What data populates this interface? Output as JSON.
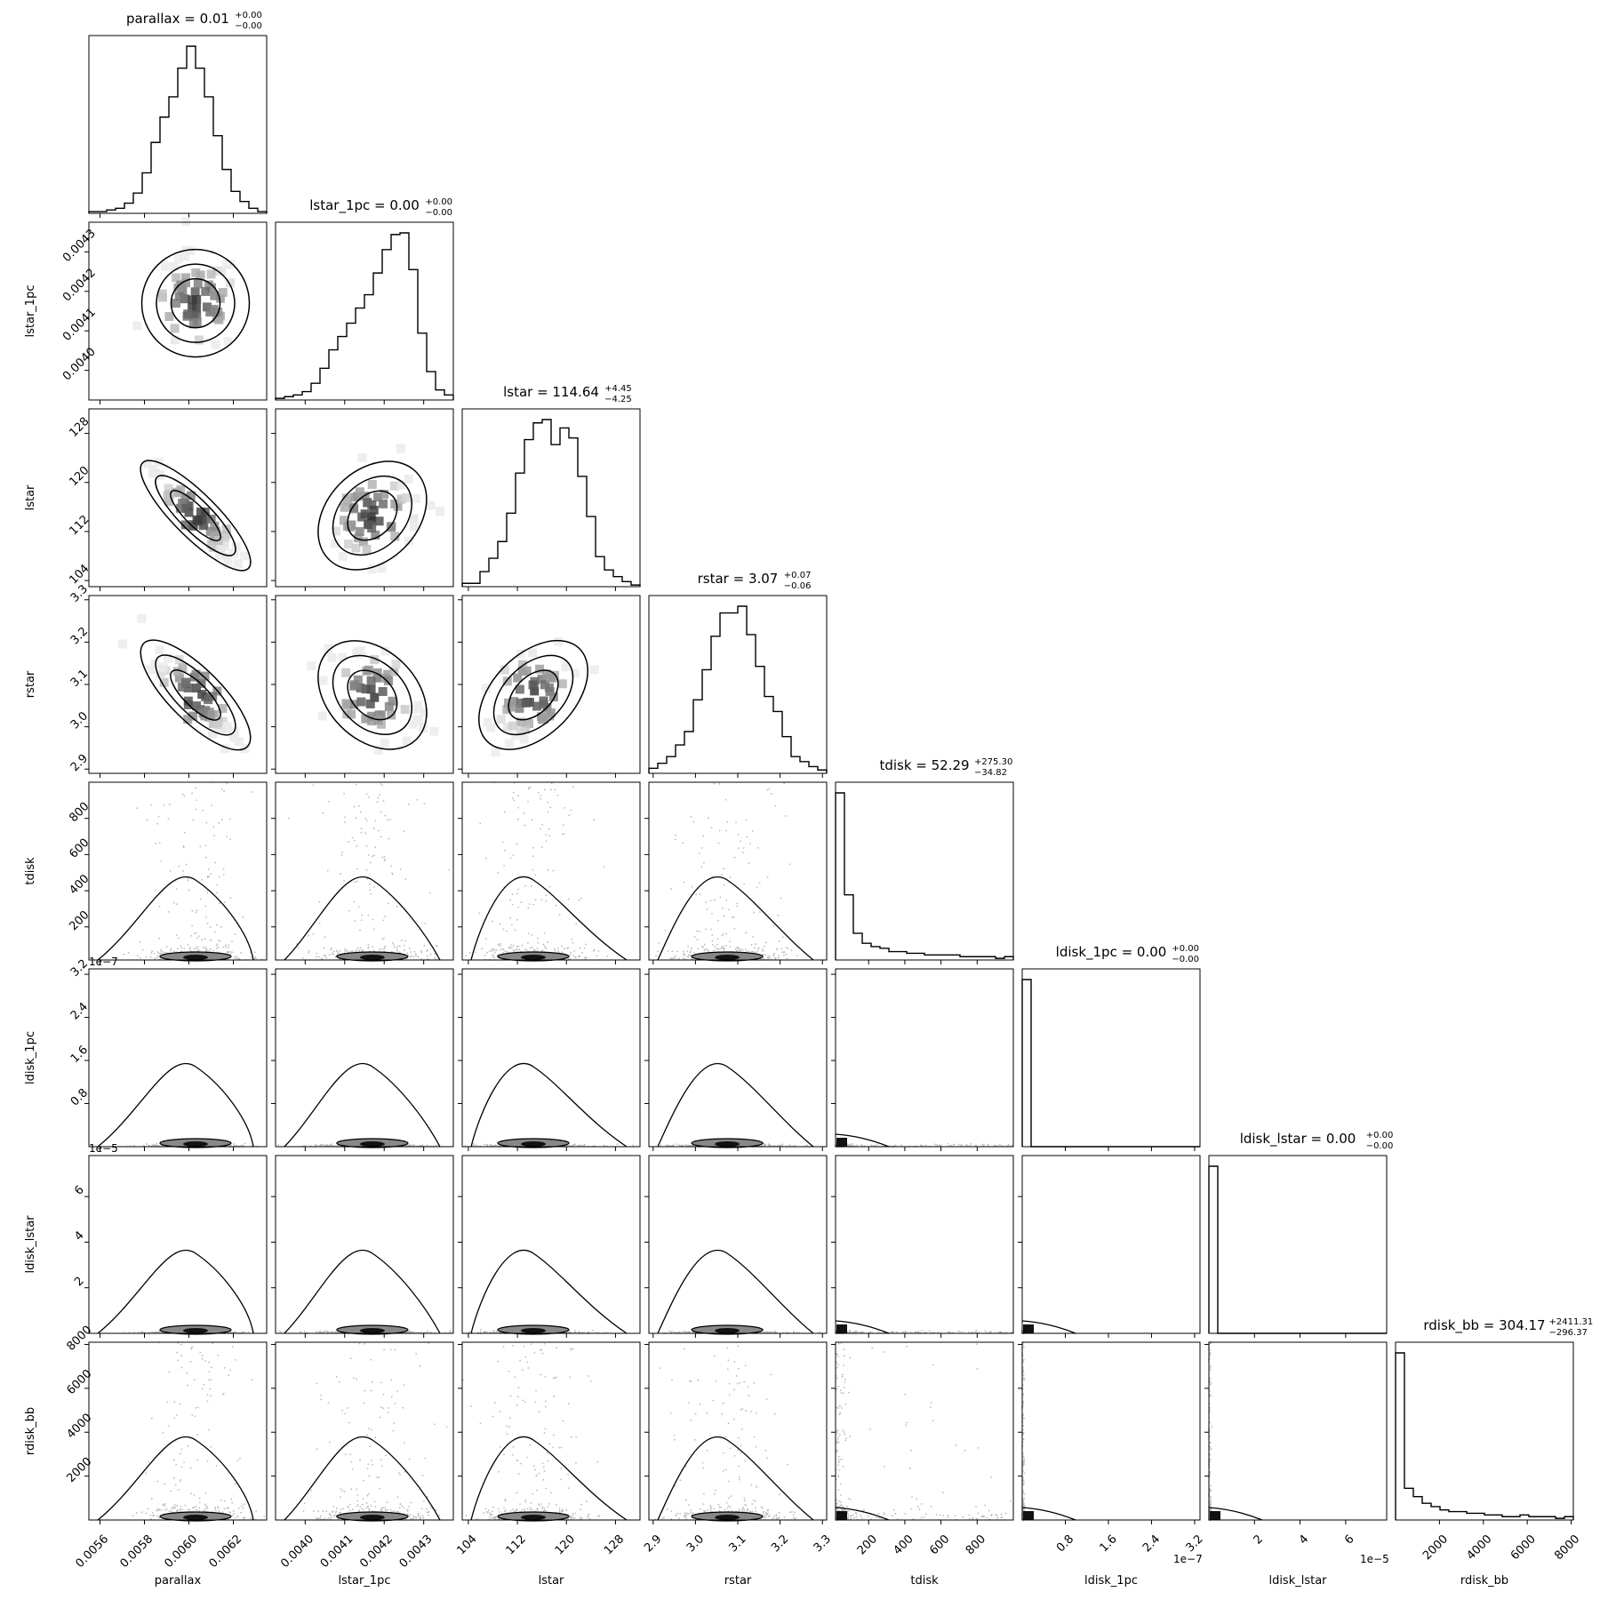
{
  "chart_data": {
    "type": "corner",
    "parameters": [
      {
        "name": "parallax",
        "title": "parallax = 0.01",
        "median": "0.01",
        "plus": "+0.00",
        "minus": "−0.00",
        "range": [
          0.00555,
          0.00635
        ],
        "ticks": [
          0.0056,
          0.0058,
          0.006,
          0.0062
        ],
        "tick_labels": [
          "0.0056",
          "0.0058",
          "0.0060",
          "0.0062"
        ],
        "mean": 0.00603,
        "sd": 0.00011,
        "dist": "normal"
      },
      {
        "name": "lstar_1pc",
        "title": "lstar_1pc = 0.00",
        "median": "0.00",
        "plus": "+0.00",
        "minus": "−0.00",
        "range": [
          0.003925,
          0.004375
        ],
        "ticks": [
          0.004,
          0.0041,
          0.0042,
          0.0043
        ],
        "tick_labels": [
          "0.0040",
          "0.0041",
          "0.0042",
          "0.0043"
        ],
        "mean": 0.00417,
        "sd": 7e-05,
        "dist": "normal"
      },
      {
        "name": "lstar",
        "title": "lstar = 114.64",
        "median": "114.64",
        "plus": "+4.45",
        "minus": "−4.25",
        "range": [
          103,
          132
        ],
        "ticks": [
          104,
          112,
          120,
          128
        ],
        "tick_labels": [
          "104",
          "112",
          "120",
          "128"
        ],
        "mean": 114.6,
        "sd": 4.3,
        "dist": "normal"
      },
      {
        "name": "rstar",
        "title": "rstar = 3.07",
        "median": "3.07",
        "plus": "+0.07",
        "minus": "−0.06",
        "range": [
          2.89,
          3.31
        ],
        "ticks": [
          2.9,
          3.0,
          3.1,
          3.2,
          3.3
        ],
        "tick_labels": [
          "2.9",
          "3.0",
          "3.1",
          "3.2",
          "3.3"
        ],
        "mean": 3.075,
        "sd": 0.066,
        "dist": "normal"
      },
      {
        "name": "tdisk",
        "title": "tdisk = 52.29",
        "median": "52.29",
        "plus": "+275.30",
        "minus": "−34.82",
        "range": [
          17,
          1000
        ],
        "ticks": [
          200,
          400,
          600,
          800
        ],
        "tick_labels": [
          "200",
          "400",
          "600",
          "800"
        ],
        "dist": "skewed"
      },
      {
        "name": "ldisk_1pc",
        "title": "ldisk_1pc = 0.00",
        "median": "0.00",
        "plus": "+0.00",
        "minus": "−0.00",
        "range": [
          0,
          3.3e-07
        ],
        "ticks": [
          8e-08,
          1.6e-07,
          2.4e-07,
          3.2e-07
        ],
        "tick_labels": [
          "0.8",
          "1.6",
          "2.4",
          "3.2"
        ],
        "offset_text": "1e−7",
        "dist": "spike"
      },
      {
        "name": "ldisk_lstar",
        "title": "ldisk_lstar = 0.00",
        "median": "0.00",
        "plus": "+0.00",
        "minus": "−0.00",
        "range": [
          0,
          7.8e-05
        ],
        "ticks": [
          2e-05,
          4e-05,
          6e-05
        ],
        "tick_labels": [
          "2",
          "4",
          "6"
        ],
        "offset_text": "1e−5",
        "dist": "spike"
      },
      {
        "name": "rdisk_bb",
        "title": "rdisk_bb = 304.17",
        "median": "304.17",
        "plus": "+2411.31",
        "minus": "−296.37",
        "range": [
          0,
          8100
        ],
        "ticks": [
          2000,
          4000,
          6000,
          8000
        ],
        "tick_labels": [
          "2000",
          "4000",
          "6000",
          "8000"
        ],
        "dist": "skewed"
      }
    ],
    "histograms": {
      "parallax": [
        1,
        1,
        2,
        3,
        6,
        12,
        24,
        42,
        57,
        69,
        86,
        99,
        86,
        69,
        46,
        26,
        13,
        7,
        3,
        1
      ],
      "lstar_1pc": [
        1,
        2,
        3,
        5,
        10,
        19,
        30,
        38,
        46,
        55,
        63,
        76,
        90,
        99,
        100,
        78,
        40,
        17,
        6,
        3
      ],
      "lstar": [
        2,
        2,
        9,
        17,
        27,
        44,
        68,
        88,
        98,
        100,
        85,
        95,
        89,
        66,
        42,
        18,
        10,
        6,
        3,
        1
      ],
      "rstar": [
        3,
        6,
        10,
        17,
        25,
        44,
        62,
        82,
        96,
        96,
        100,
        83,
        64,
        46,
        37,
        22,
        10,
        7,
        4,
        2
      ],
      "tdisk": [
        100,
        39,
        16,
        10,
        8,
        7,
        5,
        5,
        4,
        4,
        3,
        3,
        3,
        3,
        2,
        2,
        2,
        2,
        1,
        2
      ],
      "ldisk_1pc": [
        100,
        0,
        0,
        0,
        0,
        0,
        0,
        0,
        0,
        0,
        0,
        0,
        0,
        0,
        0,
        0,
        0,
        0,
        0,
        0
      ],
      "ldisk_lstar": [
        100,
        0,
        0,
        0,
        0,
        0,
        0,
        0,
        0,
        0,
        0,
        0,
        0,
        0,
        0,
        0,
        0,
        0,
        0,
        0
      ],
      "rdisk_bb": [
        100,
        19,
        14,
        10,
        8,
        6,
        5,
        5,
        4,
        4,
        3,
        3,
        2,
        2,
        3,
        2,
        2,
        2,
        1,
        2
      ]
    },
    "correlations": [
      {
        "pair": [
          "lstar",
          "parallax"
        ],
        "rho": -0.93
      },
      {
        "pair": [
          "rstar",
          "parallax"
        ],
        "rho": -0.85
      },
      {
        "pair": [
          "lstar",
          "lstar_1pc"
        ],
        "rho": 0.32
      },
      {
        "pair": [
          "rstar",
          "lstar_1pc"
        ],
        "rho": -0.35
      },
      {
        "pair": [
          "rstar",
          "lstar"
        ],
        "rho": 0.48
      }
    ]
  }
}
